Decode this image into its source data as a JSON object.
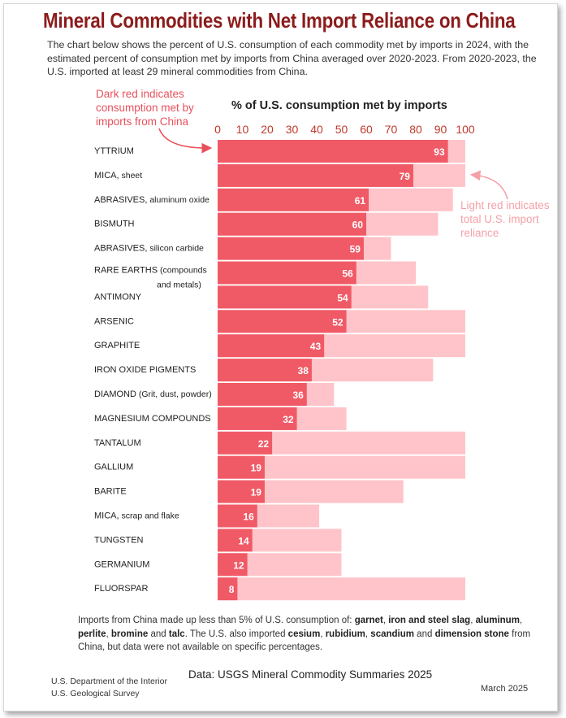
{
  "title": "Mineral Commodities with Net Import Reliance on China",
  "subtitle": "The chart below shows the percent of U.S. consumption of each commodity met by imports in 2024, with the estimated percent of consumption met by imports from China averaged over 2020-2023. From 2020-2023, the U.S. imported at least 29 mineral commodities from China.",
  "annotations": {
    "dark": "Dark red indicates consumption met by imports from China",
    "light": "Light red indicates total U.S. import reliance"
  },
  "colors": {
    "dark_red": "#f05a66",
    "light_red": "#ffc4c9",
    "title": "#8c1c1c",
    "tick": "#c0392b"
  },
  "chart_data": {
    "type": "bar",
    "orientation": "horizontal",
    "stacked": "overlay",
    "xlabel": "% of U.S. consumption met by imports",
    "xlim": [
      0,
      100
    ],
    "xticks": [
      0,
      10,
      20,
      30,
      40,
      50,
      60,
      70,
      80,
      90,
      100
    ],
    "categories": [
      {
        "name": "YTTRIUM",
        "suffix": ""
      },
      {
        "name": "MICA,",
        "suffix": "sheet"
      },
      {
        "name": "ABRASIVES,",
        "suffix": "aluminum oxide"
      },
      {
        "name": "BISMUTH",
        "suffix": ""
      },
      {
        "name": "ABRASIVES,",
        "suffix": "silicon carbide"
      },
      {
        "name": "RARE EARTHS",
        "suffix": "(compounds",
        "line2": "and metals)"
      },
      {
        "name": "ANTIMONY",
        "suffix": ""
      },
      {
        "name": "ARSENIC",
        "suffix": ""
      },
      {
        "name": "GRAPHITE",
        "suffix": ""
      },
      {
        "name": "IRON OXIDE PIGMENTS",
        "suffix": ""
      },
      {
        "name": "DIAMOND",
        "suffix": "(Grit, dust, powder)"
      },
      {
        "name": "MAGNESIUM COMPOUNDS",
        "suffix": ""
      },
      {
        "name": "TANTALUM",
        "suffix": ""
      },
      {
        "name": "GALLIUM",
        "suffix": ""
      },
      {
        "name": "BARITE",
        "suffix": ""
      },
      {
        "name": "MICA,",
        "suffix": "scrap and flake"
      },
      {
        "name": "TUNGSTEN",
        "suffix": ""
      },
      {
        "name": "GERMANIUM",
        "suffix": ""
      },
      {
        "name": "FLUORSPAR",
        "suffix": ""
      }
    ],
    "series": [
      {
        "values": [
          93,
          79,
          61,
          60,
          59,
          56,
          54,
          52,
          43,
          38,
          36,
          32,
          22,
          19,
          19,
          16,
          14,
          12,
          8
        ]
      },
      {
        "values": [
          100,
          100,
          95,
          89,
          70,
          80,
          85,
          100,
          100,
          87,
          47,
          52,
          100,
          100,
          75,
          41,
          50,
          50,
          100
        ]
      }
    ],
    "grid": false,
    "legend": "annotations"
  },
  "footnote": {
    "intro": "Imports from China made up less than 5% of U.S. consumption of: ",
    "b1": "garnet",
    "sep1": ", ",
    "b2": "iron and steel slag",
    "sep2": ", ",
    "b3": "aluminum",
    "sep3": ", ",
    "b4": "perlite",
    "sep4": ", ",
    "b5": "bromine",
    "sep5": " and ",
    "b6": "talc",
    "mid": ". The U.S. also imported ",
    "b7": "cesium",
    "sep7": ", ",
    "b8": "rubidium",
    "sep8": ", ",
    "b9": "scandium",
    "sep9": " and ",
    "b10": "dimension stone",
    "end": " from China, but data were not available on specific percentages."
  },
  "footer": {
    "dept1": "U.S. Department of the Interior",
    "dept2": "U.S. Geological Survey",
    "source": "Data: USGS Mineral Commodity Summaries 2025",
    "date": "March 2025"
  }
}
